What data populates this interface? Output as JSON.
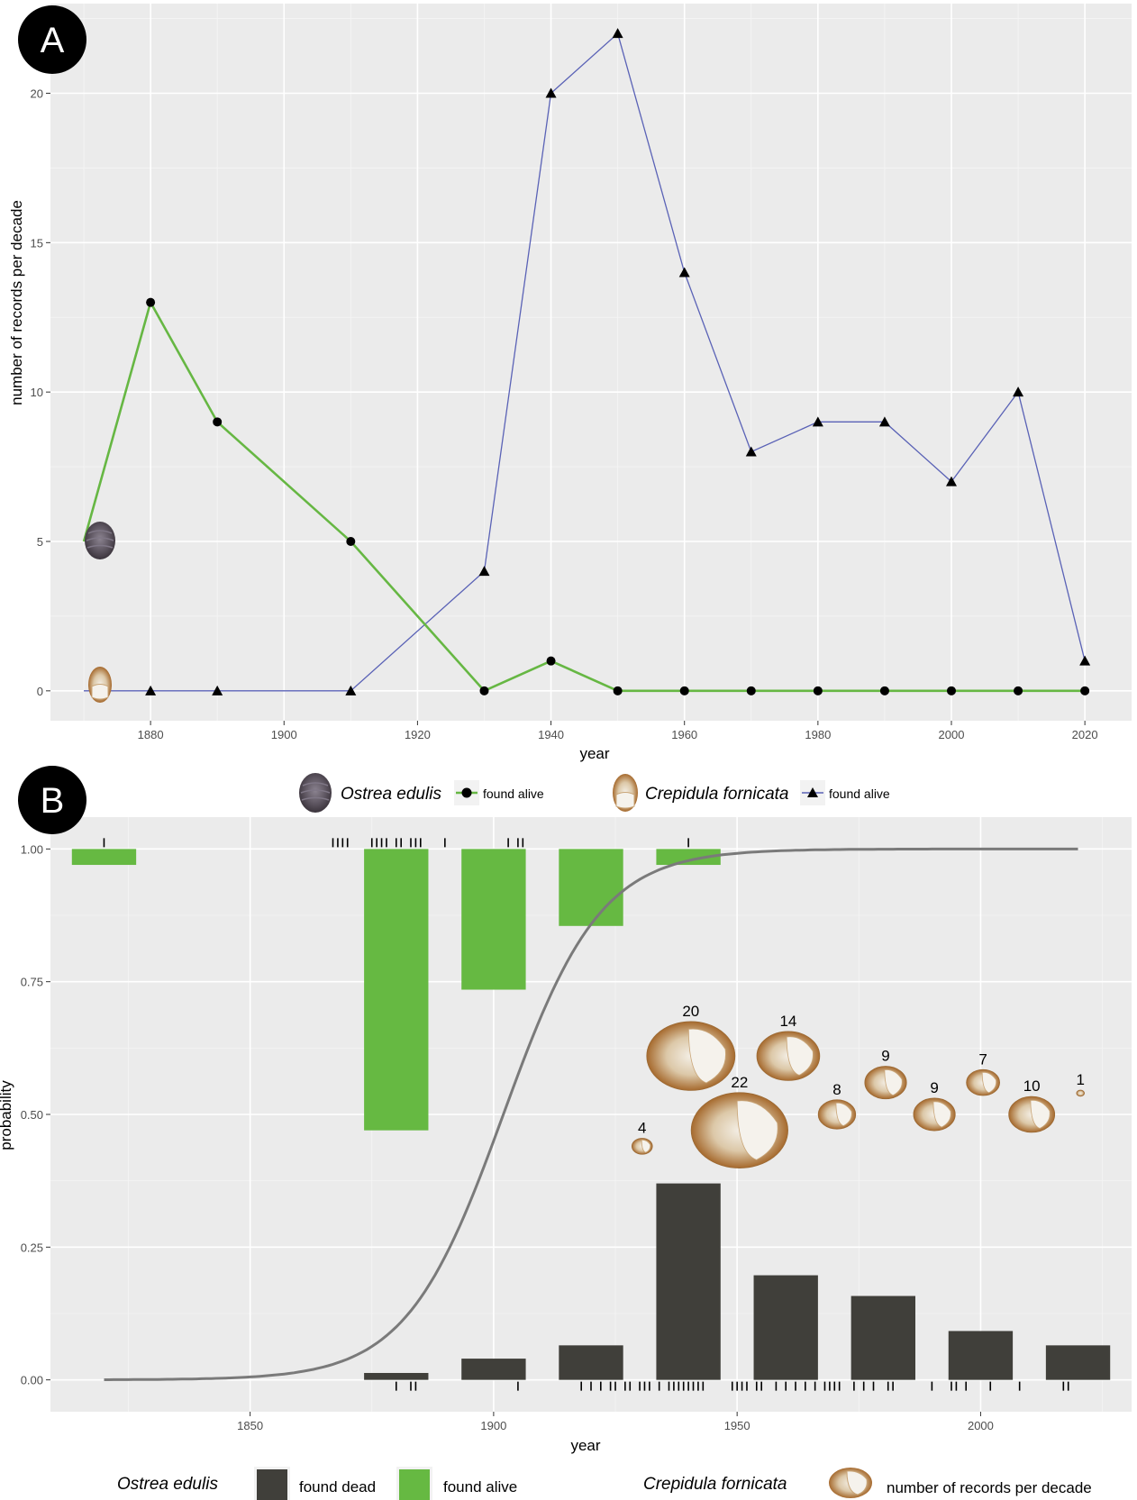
{
  "colors": {
    "ostrea_line": "#66b743",
    "crepidula_line": "#5a62b6",
    "alive_bar": "#66b942",
    "dead_bar": "#403f3a",
    "curve": "#7a7a7a",
    "panel_bg": "#ebebeb",
    "shell_crepidula": "#b87a3a",
    "shell_ostrea": "#5d5560"
  },
  "panel_a": {
    "label": "A",
    "xlabel": "year",
    "ylabel": "number of records per decade",
    "legend": {
      "species_1": "Ostrea edulis",
      "species_1_key": "found alive",
      "species_2": "Crepidula fornicata",
      "species_2_key": "found alive"
    }
  },
  "panel_b": {
    "label": "B",
    "xlabel": "year",
    "ylabel": "probability",
    "legend": {
      "species_1": "Ostrea edulis",
      "dead_key": "found dead",
      "alive_key": "found alive",
      "species_2": "Crepidula fornicata",
      "count_key": "number of records per decade"
    }
  },
  "chart_data": [
    {
      "type": "line",
      "panel": "A",
      "xlabel": "year",
      "ylabel": "number of records per decade",
      "xlim": [
        1865,
        2027
      ],
      "ylim": [
        -1,
        23
      ],
      "xticks": [
        1880,
        1900,
        1920,
        1940,
        1960,
        1980,
        2000,
        2020
      ],
      "yticks": [
        0,
        5,
        10,
        15,
        20
      ],
      "grid": true,
      "series": [
        {
          "name": "Ostrea edulis",
          "marker": "circle",
          "x": [
            1870,
            1880,
            1890,
            1910,
            1930,
            1940,
            1950,
            1960,
            1970,
            1980,
            1990,
            2000,
            2010,
            2020
          ],
          "y": [
            5,
            13,
            9,
            5,
            0,
            1,
            0,
            0,
            0,
            0,
            0,
            0,
            0,
            0
          ]
        },
        {
          "name": "Crepidula fornicata",
          "marker": "triangle",
          "x": [
            1870,
            1880,
            1890,
            1910,
            1930,
            1940,
            1950,
            1960,
            1970,
            1980,
            1990,
            2000,
            2010,
            2020
          ],
          "y": [
            0,
            0,
            0,
            0,
            4,
            20,
            22,
            14,
            8,
            9,
            9,
            7,
            10,
            1
          ]
        }
      ],
      "legend_position": "bottom"
    },
    {
      "type": "bar",
      "panel": "B",
      "xlabel": "year",
      "ylabel": "probability",
      "xlim": [
        1809,
        2031
      ],
      "ylim": [
        -0.06,
        1.06
      ],
      "xticks": [
        1850,
        1900,
        1950,
        2000
      ],
      "yticks": [
        0.0,
        0.25,
        0.5,
        0.75,
        1.0
      ],
      "ytick_labels": [
        "0.00",
        "0.25",
        "0.50",
        "0.75",
        "1.00"
      ],
      "grid": true,
      "found_alive_bars": [
        {
          "x": 1820,
          "value": 0.03
        },
        {
          "x": 1880,
          "value": 0.53
        },
        {
          "x": 1900,
          "value": 0.265
        },
        {
          "x": 1920,
          "value": 0.145
        },
        {
          "x": 1940,
          "value": 0.03
        }
      ],
      "found_dead_bars": [
        {
          "x": 1880,
          "value": 0.013
        },
        {
          "x": 1900,
          "value": 0.04
        },
        {
          "x": 1920,
          "value": 0.065
        },
        {
          "x": 1940,
          "value": 0.37
        },
        {
          "x": 1960,
          "value": 0.197
        },
        {
          "x": 1980,
          "value": 0.158
        },
        {
          "x": 2000,
          "value": 0.092
        },
        {
          "x": 2020,
          "value": 0.065
        }
      ],
      "logistic_curve": {
        "x_start": 1820,
        "x_end": 2020,
        "midpoint": 1902,
        "rate": 0.1
      },
      "alive_rug_years": [
        1820,
        1867,
        1868,
        1869,
        1870,
        1875,
        1876,
        1877,
        1878,
        1880,
        1881,
        1883,
        1884,
        1885,
        1890,
        1903,
        1905,
        1906,
        1940
      ],
      "dead_rug_years": [
        1880,
        1883,
        1884,
        1905,
        1918,
        1920,
        1922,
        1924,
        1925,
        1927,
        1928,
        1930,
        1931,
        1932,
        1934,
        1936,
        1937,
        1938,
        1939,
        1940,
        1941,
        1942,
        1943,
        1949,
        1950,
        1951,
        1952,
        1954,
        1955,
        1958,
        1960,
        1962,
        1964,
        1966,
        1968,
        1969,
        1970,
        1971,
        1974,
        1976,
        1978,
        1981,
        1982,
        1990,
        1994,
        1995,
        1997,
        2002,
        2008,
        2017,
        2018
      ],
      "records_per_decade": [
        {
          "decade": 1930,
          "count": 4,
          "label": "4"
        },
        {
          "decade": 1940,
          "count": 20,
          "label": "20"
        },
        {
          "decade": 1950,
          "count": 22,
          "label": "22"
        },
        {
          "decade": 1960,
          "count": 14,
          "label": "14"
        },
        {
          "decade": 1970,
          "count": 8,
          "label": "8"
        },
        {
          "decade": 1980,
          "count": 9,
          "label": "9"
        },
        {
          "decade": 1990,
          "count": 9,
          "label": "9"
        },
        {
          "decade": 2000,
          "count": 7,
          "label": "7"
        },
        {
          "decade": 2010,
          "count": 10,
          "label": "10"
        },
        {
          "decade": 2020,
          "count": 1,
          "label": "1"
        }
      ],
      "legend_position": "bottom"
    }
  ]
}
